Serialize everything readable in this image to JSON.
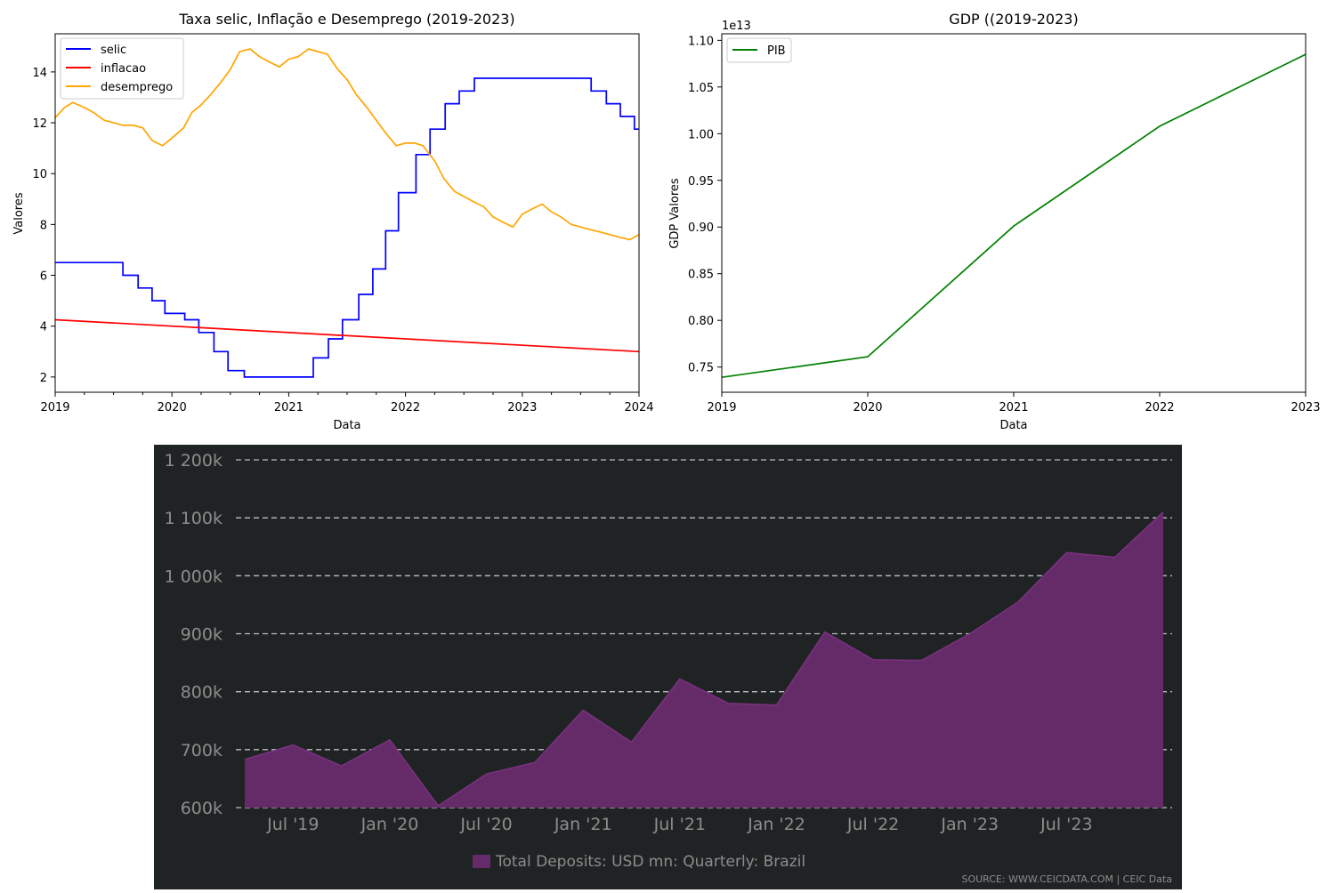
{
  "chart_data": [
    {
      "type": "line",
      "title": "Taxa selic, Inflação e Desemprego (2019-2023)",
      "xlabel": "Data",
      "ylabel": "Valores",
      "xlim": [
        2019,
        2024
      ],
      "ylim": [
        1.4,
        15.5
      ],
      "x_ticks": [
        "2019",
        "2020",
        "2021",
        "2022",
        "2023",
        "2024"
      ],
      "y_ticks": [
        "2",
        "4",
        "6",
        "8",
        "10",
        "12",
        "14"
      ],
      "legend": "top-left",
      "series": [
        {
          "name": "selic",
          "color": "#0000ff",
          "step": true,
          "points": [
            [
              2019.0,
              6.5
            ],
            [
              2019.58,
              6.0
            ],
            [
              2019.71,
              5.5
            ],
            [
              2019.83,
              5.0
            ],
            [
              2019.94,
              4.5
            ],
            [
              2020.11,
              4.25
            ],
            [
              2020.23,
              3.75
            ],
            [
              2020.36,
              3.0
            ],
            [
              2020.48,
              2.25
            ],
            [
              2020.62,
              2.0
            ],
            [
              2021.21,
              2.75
            ],
            [
              2021.34,
              3.5
            ],
            [
              2021.46,
              4.25
            ],
            [
              2021.6,
              5.25
            ],
            [
              2021.72,
              6.25
            ],
            [
              2021.83,
              7.75
            ],
            [
              2021.94,
              9.25
            ],
            [
              2022.09,
              10.75
            ],
            [
              2022.21,
              11.75
            ],
            [
              2022.34,
              12.75
            ],
            [
              2022.46,
              13.25
            ],
            [
              2022.59,
              13.75
            ],
            [
              2023.59,
              13.25
            ],
            [
              2023.72,
              12.75
            ],
            [
              2023.84,
              12.25
            ],
            [
              2023.96,
              11.75
            ],
            [
              2024.0,
              11.75
            ]
          ]
        },
        {
          "name": "inflacao",
          "color": "#ff0000",
          "points": [
            [
              2019.0,
              4.25
            ],
            [
              2024.0,
              3.0
            ]
          ]
        },
        {
          "name": "desemprego",
          "color": "#ffa500",
          "points": [
            [
              2019.0,
              12.2
            ],
            [
              2019.08,
              12.6
            ],
            [
              2019.15,
              12.8
            ],
            [
              2019.25,
              12.6
            ],
            [
              2019.33,
              12.4
            ],
            [
              2019.42,
              12.1
            ],
            [
              2019.58,
              11.9
            ],
            [
              2019.67,
              11.9
            ],
            [
              2019.75,
              11.8
            ],
            [
              2019.83,
              11.3
            ],
            [
              2019.92,
              11.1
            ],
            [
              2020.0,
              11.4
            ],
            [
              2020.1,
              11.8
            ],
            [
              2020.17,
              12.4
            ],
            [
              2020.25,
              12.7
            ],
            [
              2020.33,
              13.1
            ],
            [
              2020.42,
              13.6
            ],
            [
              2020.5,
              14.1
            ],
            [
              2020.58,
              14.8
            ],
            [
              2020.67,
              14.9
            ],
            [
              2020.75,
              14.6
            ],
            [
              2020.83,
              14.4
            ],
            [
              2020.92,
              14.2
            ],
            [
              2021.0,
              14.5
            ],
            [
              2021.08,
              14.6
            ],
            [
              2021.17,
              14.9
            ],
            [
              2021.25,
              14.8
            ],
            [
              2021.33,
              14.7
            ],
            [
              2021.42,
              14.1
            ],
            [
              2021.5,
              13.7
            ],
            [
              2021.58,
              13.1
            ],
            [
              2021.67,
              12.6
            ],
            [
              2021.75,
              12.1
            ],
            [
              2021.83,
              11.6
            ],
            [
              2021.92,
              11.1
            ],
            [
              2022.0,
              11.2
            ],
            [
              2022.08,
              11.2
            ],
            [
              2022.15,
              11.1
            ],
            [
              2022.25,
              10.5
            ],
            [
              2022.33,
              9.8
            ],
            [
              2022.42,
              9.3
            ],
            [
              2022.5,
              9.1
            ],
            [
              2022.58,
              8.9
            ],
            [
              2022.67,
              8.7
            ],
            [
              2022.75,
              8.3
            ],
            [
              2022.83,
              8.1
            ],
            [
              2022.92,
              7.9
            ],
            [
              2023.0,
              8.4
            ],
            [
              2023.08,
              8.6
            ],
            [
              2023.17,
              8.8
            ],
            [
              2023.25,
              8.5
            ],
            [
              2023.33,
              8.3
            ],
            [
              2023.42,
              8.0
            ],
            [
              2023.5,
              7.9
            ],
            [
              2023.58,
              7.8
            ],
            [
              2023.67,
              7.7
            ],
            [
              2023.75,
              7.6
            ],
            [
              2023.83,
              7.5
            ],
            [
              2023.92,
              7.4
            ],
            [
              2024.0,
              7.6
            ]
          ]
        }
      ]
    },
    {
      "type": "line",
      "title": "GDP ((2019-2023)",
      "xlabel": "Data",
      "ylabel": "GDP Valores",
      "y_offset_label": "1e13",
      "xlim": [
        2019,
        2023
      ],
      "ylim": [
        0.723,
        1.107
      ],
      "x_ticks": [
        "2019",
        "2020",
        "2021",
        "2022",
        "2023"
      ],
      "y_ticks": [
        "0.75",
        "0.80",
        "0.85",
        "0.90",
        "0.95",
        "1.00",
        "1.05",
        "1.10"
      ],
      "legend": "top-left",
      "series": [
        {
          "name": "PIB",
          "color": "#008000",
          "points": [
            [
              2019,
              0.739
            ],
            [
              2020,
              0.761
            ],
            [
              2021,
              0.901
            ],
            [
              2022,
              1.008
            ],
            [
              2023,
              1.085
            ]
          ]
        }
      ]
    },
    {
      "type": "area",
      "ylim": [
        600,
        1200
      ],
      "y_ticks": [
        "600k",
        "700k",
        "800k",
        "900k",
        "1 000k",
        "1 100k",
        "1 200k"
      ],
      "x_ticks": [
        "Jul '19",
        "Jan '20",
        "Jul '20",
        "Jan '21",
        "Jul '21",
        "Jan '22",
        "Jul '22",
        "Jan '23",
        "Jul '23"
      ],
      "grid": true,
      "legend": "bottom-center",
      "colors": {
        "background": "#202324",
        "fill": "#652b69",
        "line": "#7a3280",
        "text": "#8c8c8c",
        "grid": "#bdbdbd"
      },
      "series": [
        {
          "name": "Total Deposits: USD mn: Quarterly: Brazil",
          "values": [
            683,
            708,
            672,
            717,
            603,
            658,
            678,
            768,
            713,
            822,
            780,
            777,
            903,
            855,
            854,
            900,
            955,
            1040,
            1032,
            1110
          ]
        }
      ],
      "source": "SOURCE: WWW.CEICDATA.COM | CEIC Data"
    }
  ]
}
